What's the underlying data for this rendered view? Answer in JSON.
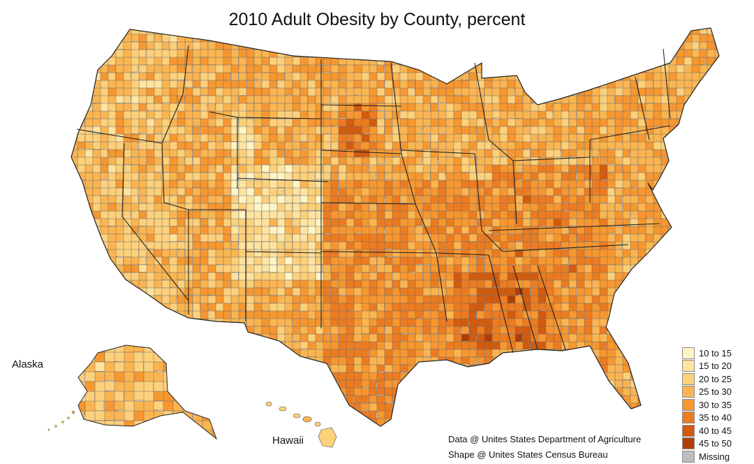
{
  "map": {
    "title": "2010 Adult Obesity by County, percent",
    "labels": {
      "alaska": "Alaska",
      "hawaii": "Hawaii"
    },
    "legend": [
      {
        "label": "10 to 15",
        "color": "#FFF5C7"
      },
      {
        "label": "15 to 20",
        "color": "#FEE4A0"
      },
      {
        "label": "20 to 25",
        "color": "#FDD07A"
      },
      {
        "label": "25 to 30",
        "color": "#FBB550"
      },
      {
        "label": "30 to 35",
        "color": "#F7972F"
      },
      {
        "label": "35 to 40",
        "color": "#ED7B1F"
      },
      {
        "label": "40 to 45",
        "color": "#D45A0C"
      },
      {
        "label": "45 to 50",
        "color": "#B03F06"
      },
      {
        "label": "Missing",
        "color": "#BDBDBD"
      }
    ],
    "credits": {
      "data_source": "Data @ Unites States Department of Agriculture",
      "shape_source": "Shape @ Unites States Census Bureau"
    }
  }
}
